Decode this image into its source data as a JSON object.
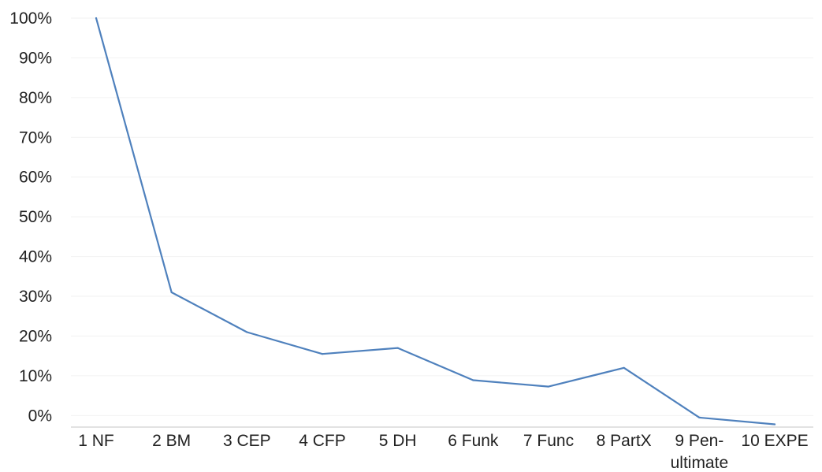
{
  "chart_data": {
    "type": "line",
    "title": "",
    "xlabel": "",
    "ylabel": "",
    "categories": [
      [
        "1 NF"
      ],
      [
        "2 BM"
      ],
      [
        "3 CEP"
      ],
      [
        "4 CFP"
      ],
      [
        "5 DH"
      ],
      [
        "6 Funk"
      ],
      [
        "7 Func"
      ],
      [
        "8 PartX"
      ],
      [
        "9 Pen-",
        "ultimate"
      ],
      [
        "10 EXPE"
      ]
    ],
    "series": [
      {
        "values": [
          100,
          31,
          21,
          15.5,
          17,
          8.9,
          7.3,
          12,
          -0.5,
          -2.2
        ],
        "color": "#4f81bd"
      }
    ],
    "ylim": [
      -2.9,
      100
    ],
    "yticks": [
      0,
      10,
      20,
      30,
      40,
      50,
      60,
      70,
      80,
      90,
      100
    ],
    "ytick_labels": [
      "0%",
      "10%",
      "20%",
      "30%",
      "40%",
      "50%",
      "60%",
      "70%",
      "80%",
      "90%",
      "100%"
    ],
    "grid": true,
    "grid_color": "#f2f2f2",
    "axis_color": "#d9d9d9",
    "text_color": "#222222",
    "legend": "none"
  }
}
